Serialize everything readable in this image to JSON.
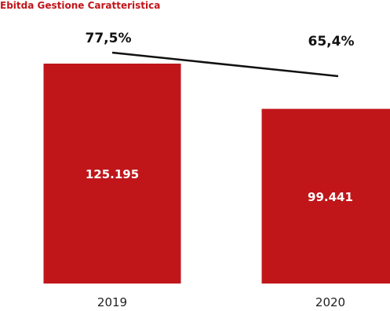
{
  "chart_data": {
    "type": "bar",
    "title": "Ebitda Gestione Caratteristica",
    "categories": [
      "2019",
      "2020"
    ],
    "values": [
      125195,
      99441
    ],
    "value_labels": [
      "125.195",
      "99.441"
    ],
    "bar_color": "#c0161a",
    "line_series": {
      "values": [
        77.5,
        65.4
      ],
      "labels": [
        "77,5%",
        "65,4%"
      ],
      "color": "#111111"
    }
  }
}
